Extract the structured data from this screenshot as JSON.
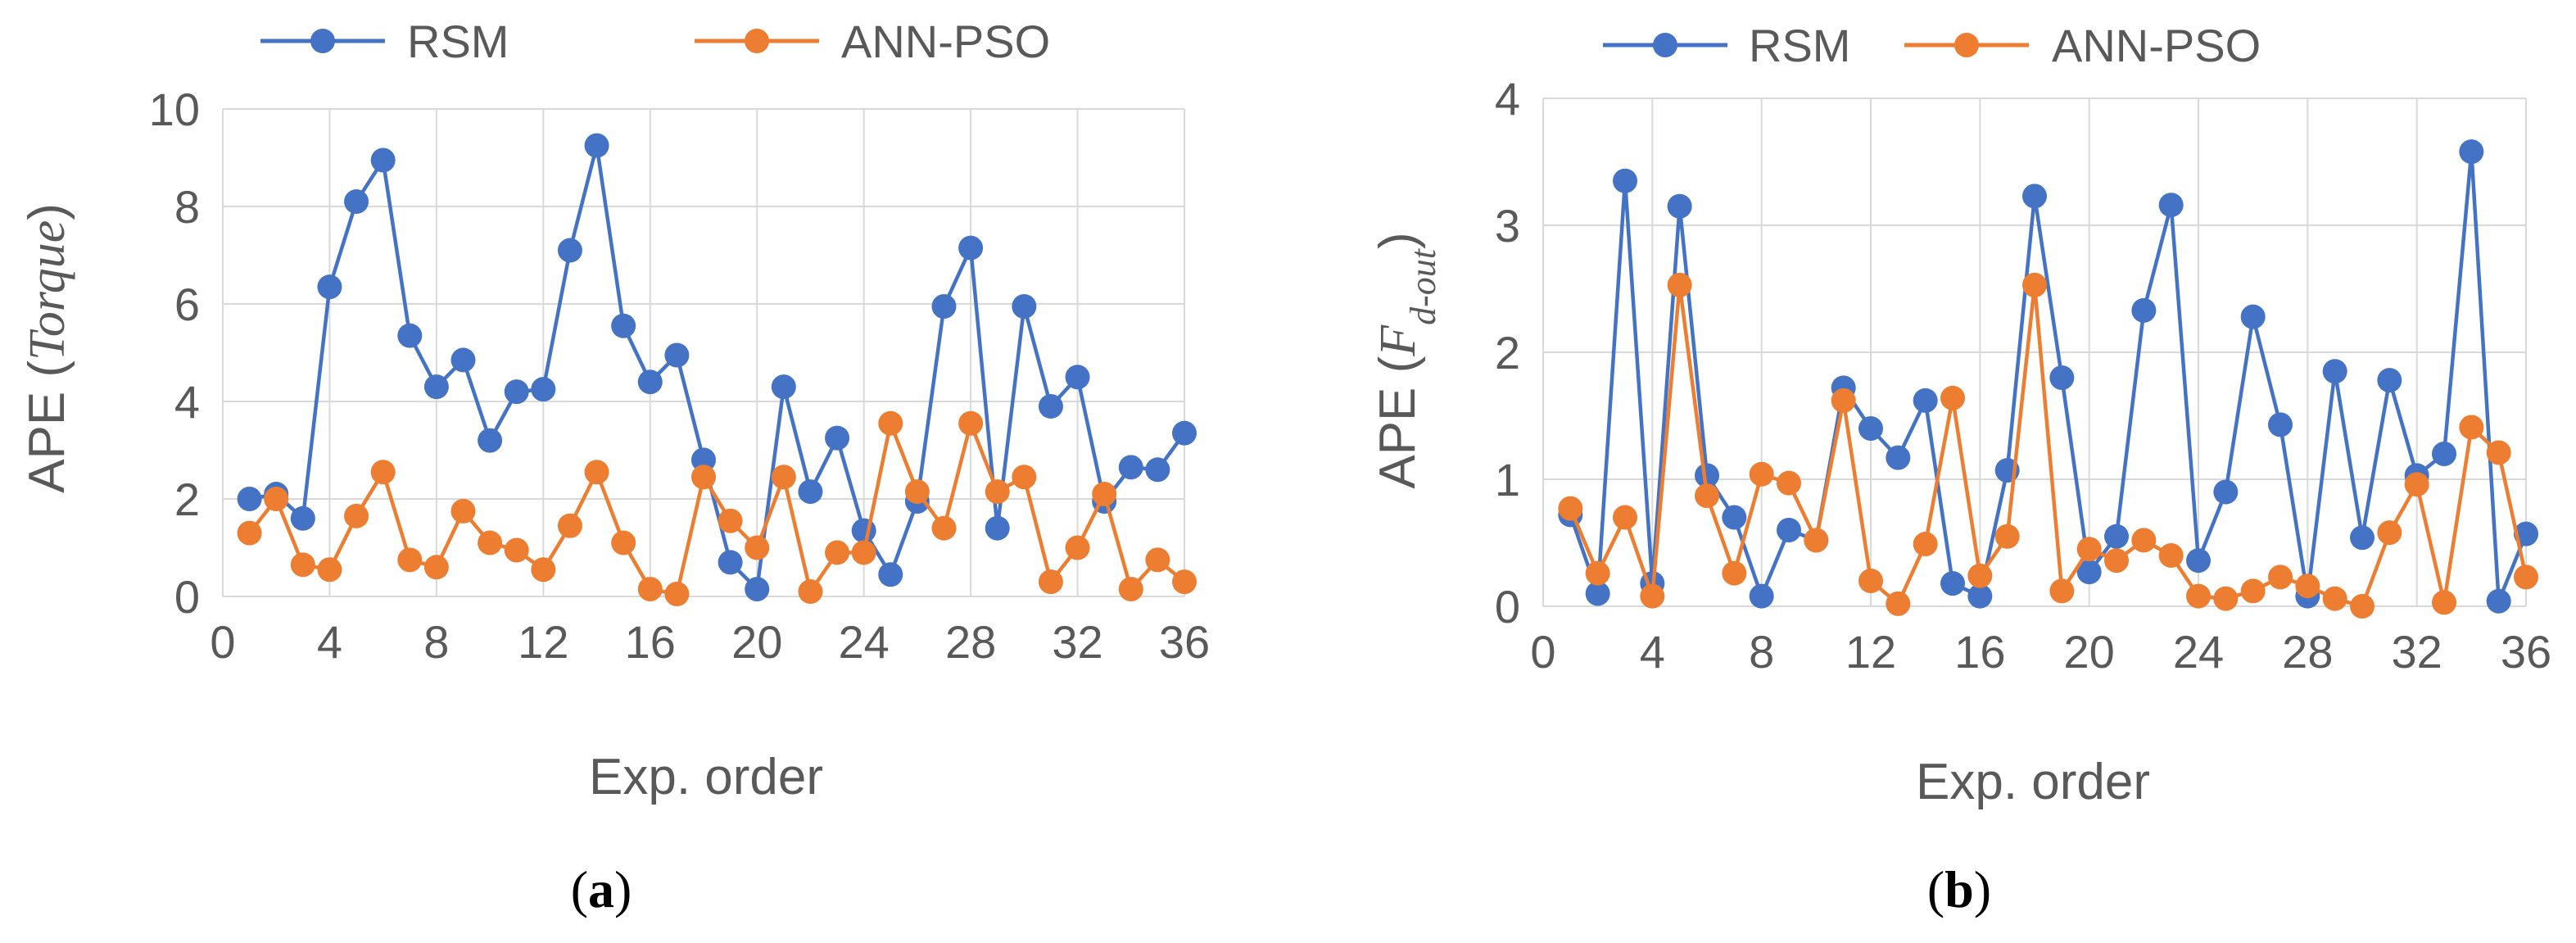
{
  "colors": {
    "rsm": "#4472c4",
    "ann_pso": "#ed7d31"
  },
  "chart_data": [
    {
      "type": "line",
      "legend": [
        "RSM",
        "ANN-PSO"
      ],
      "xlabel": "Exp. order",
      "ylabel_prefix": "APE (",
      "ylabel_var": "Torque",
      "ylabel_suffix": ")",
      "xlim": [
        0,
        36
      ],
      "ylim": [
        0,
        10
      ],
      "xticks": [
        "0",
        "4",
        "8",
        "12",
        "16",
        "20",
        "24",
        "28",
        "32",
        "36"
      ],
      "yticks": [
        "0",
        "2",
        "4",
        "6",
        "8",
        "10"
      ],
      "caption_open": "(",
      "caption_letter": "a",
      "caption_close": ")",
      "x": [
        1,
        2,
        3,
        4,
        5,
        6,
        7,
        8,
        9,
        10,
        11,
        12,
        13,
        14,
        15,
        16,
        17,
        18,
        19,
        20,
        21,
        22,
        23,
        24,
        25,
        26,
        27,
        28,
        29,
        30,
        31,
        32,
        33,
        34,
        35,
        36
      ],
      "series": [
        {
          "name": "RSM",
          "values": [
            2.0,
            2.1,
            1.6,
            6.35,
            8.1,
            8.95,
            5.35,
            4.3,
            4.85,
            3.2,
            4.2,
            4.25,
            7.1,
            9.25,
            5.55,
            4.4,
            4.95,
            2.8,
            0.7,
            0.15,
            4.3,
            2.15,
            3.25,
            1.35,
            0.45,
            1.95,
            5.95,
            7.15,
            1.4,
            5.95,
            3.9,
            4.5,
            1.95,
            2.65,
            2.6,
            3.35
          ]
        },
        {
          "name": "ANN-PSO",
          "values": [
            1.3,
            2.0,
            0.65,
            0.55,
            1.65,
            2.55,
            0.75,
            0.6,
            1.75,
            1.1,
            0.95,
            0.55,
            1.45,
            2.55,
            1.1,
            0.15,
            0.05,
            2.45,
            1.55,
            1.0,
            2.45,
            0.1,
            0.9,
            0.9,
            3.55,
            2.15,
            1.4,
            3.55,
            2.15,
            2.45,
            0.3,
            1.0,
            2.1,
            0.15,
            0.75,
            0.3
          ]
        }
      ]
    },
    {
      "type": "line",
      "legend": [
        "RSM",
        "ANN-PSO"
      ],
      "xlabel": "Exp. order",
      "ylabel_prefix": "APE (",
      "ylabel_var": "F",
      "ylabel_sub": "d-out",
      "ylabel_suffix": ")",
      "xlim": [
        0,
        36
      ],
      "ylim": [
        0,
        4
      ],
      "xticks": [
        "0",
        "4",
        "8",
        "12",
        "16",
        "20",
        "24",
        "28",
        "32",
        "36"
      ],
      "yticks": [
        "0",
        "1",
        "2",
        "3",
        "4"
      ],
      "caption_open": "(",
      "caption_letter": "b",
      "caption_close": ")",
      "x": [
        1,
        2,
        3,
        4,
        5,
        6,
        7,
        8,
        9,
        10,
        11,
        12,
        13,
        14,
        15,
        16,
        17,
        18,
        19,
        20,
        21,
        22,
        23,
        24,
        25,
        26,
        27,
        28,
        29,
        30,
        31,
        32,
        33,
        34,
        35,
        36
      ],
      "series": [
        {
          "name": "RSM",
          "values": [
            0.72,
            0.1,
            3.35,
            0.18,
            3.15,
            1.03,
            0.7,
            0.08,
            0.6,
            0.52,
            1.72,
            1.4,
            1.17,
            1.62,
            0.18,
            0.08,
            1.07,
            3.23,
            1.8,
            0.27,
            0.55,
            2.33,
            3.16,
            0.36,
            0.9,
            2.28,
            1.43,
            0.08,
            1.85,
            0.54,
            1.78,
            1.03,
            1.2,
            3.58,
            0.04,
            0.57
          ]
        },
        {
          "name": "ANN-PSO",
          "values": [
            0.77,
            0.26,
            0.7,
            0.08,
            2.53,
            0.87,
            0.26,
            1.04,
            0.97,
            0.52,
            1.62,
            0.2,
            0.02,
            0.49,
            1.64,
            0.24,
            0.55,
            2.53,
            0.12,
            0.45,
            0.36,
            0.52,
            0.4,
            0.08,
            0.06,
            0.12,
            0.23,
            0.16,
            0.06,
            0.0,
            0.58,
            0.96,
            0.03,
            1.41,
            1.21,
            0.23
          ]
        }
      ]
    }
  ]
}
